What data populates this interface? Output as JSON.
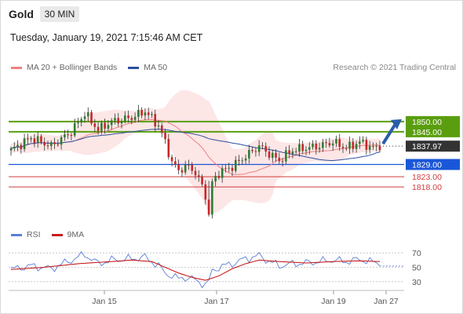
{
  "header": {
    "instrument": "Gold",
    "timeframe": "30 MIN"
  },
  "datetime": "Tuesday, January 19, 2021 7:15:46 AM CET",
  "copyright": "Research © 2021 Trading Central",
  "colors": {
    "resistance": "#5a9e0f",
    "support": "#1a56d8",
    "minor": "#d13b3b",
    "current": "#333333",
    "bollinger_fill": "#fde2e2",
    "ma20": "#f08080",
    "ma50": "#2c4fa0",
    "arrow": "#2a5da8",
    "rsi": "#5b7fd6",
    "rsi_ma": "#c81e1e"
  },
  "chart_data": [
    {
      "type": "candlestick",
      "title": "Gold",
      "timeframe": "30 MIN",
      "legend": [
        {
          "name": "MA 20 + Bollinger Bands",
          "color": "#f08080"
        },
        {
          "name": "MA 50",
          "color": "#2c4fa0"
        }
      ],
      "x_ticks": [
        "Jan 15",
        "Jan 17",
        "Jan 19",
        "Jan 27"
      ],
      "ylim": [
        1800,
        1873
      ],
      "levels": [
        {
          "value": 1850.0,
          "label": "1850.00",
          "kind": "resistance"
        },
        {
          "value": 1845.0,
          "label": "1845.00",
          "kind": "resistance"
        },
        {
          "value": 1837.97,
          "label": "1837.97",
          "kind": "current"
        },
        {
          "value": 1829.0,
          "label": "1829.00",
          "kind": "support"
        },
        {
          "value": 1823.0,
          "label": "1823.00",
          "kind": "minor"
        },
        {
          "value": 1818.0,
          "label": "1818.00",
          "kind": "minor"
        }
      ],
      "price_path": [
        [
          0,
          1836
        ],
        [
          6,
          1842
        ],
        [
          12,
          1838
        ],
        [
          18,
          1845
        ],
        [
          22,
          1854
        ],
        [
          26,
          1846
        ],
        [
          30,
          1850
        ],
        [
          36,
          1852
        ],
        [
          40,
          1855
        ],
        [
          44,
          1848
        ],
        [
          46,
          1840
        ],
        [
          48,
          1830
        ],
        [
          50,
          1826
        ],
        [
          52,
          1828
        ],
        [
          54,
          1827
        ],
        [
          56,
          1822
        ],
        [
          58,
          1814
        ],
        [
          59,
          1804
        ],
        [
          60,
          1820
        ],
        [
          62,
          1825
        ],
        [
          66,
          1828
        ],
        [
          70,
          1833
        ],
        [
          74,
          1838
        ],
        [
          78,
          1833
        ],
        [
          80,
          1831
        ],
        [
          84,
          1836
        ],
        [
          88,
          1837
        ],
        [
          92,
          1838
        ],
        [
          96,
          1840
        ],
        [
          100,
          1837
        ],
        [
          104,
          1840
        ],
        [
          108,
          1837
        ],
        [
          110,
          1838
        ]
      ],
      "projection": {
        "from": 1837.97,
        "to": 1850.0
      }
    },
    {
      "type": "line",
      "title": "RSI",
      "legend": [
        {
          "name": "RSI",
          "color": "#5b7fd6"
        },
        {
          "name": "9MA",
          "color": "#c81e1e"
        }
      ],
      "ylim": [
        20,
        80
      ],
      "y_ticks": [
        70,
        50,
        30
      ],
      "series": [
        {
          "name": "RSI",
          "values": [
            [
              0,
              47
            ],
            [
              6,
              52
            ],
            [
              12,
              48
            ],
            [
              18,
              60
            ],
            [
              22,
              68
            ],
            [
              26,
              55
            ],
            [
              30,
              60
            ],
            [
              36,
              62
            ],
            [
              40,
              64
            ],
            [
              44,
              52
            ],
            [
              46,
              42
            ],
            [
              48,
              38
            ],
            [
              50,
              34
            ],
            [
              52,
              36
            ],
            [
              54,
              34
            ],
            [
              56,
              30
            ],
            [
              58,
              26
            ],
            [
              59,
              30
            ],
            [
              60,
              45
            ],
            [
              62,
              50
            ],
            [
              66,
              55
            ],
            [
              70,
              62
            ],
            [
              74,
              66
            ],
            [
              78,
              56
            ],
            [
              80,
              52
            ],
            [
              84,
              55
            ],
            [
              88,
              56
            ],
            [
              92,
              58
            ],
            [
              96,
              60
            ],
            [
              100,
              58
            ],
            [
              104,
              61
            ],
            [
              108,
              57
            ],
            [
              110,
              56
            ]
          ]
        },
        {
          "name": "9MA",
          "values": [
            [
              0,
              47
            ],
            [
              10,
              50
            ],
            [
              20,
              55
            ],
            [
              30,
              58
            ],
            [
              36,
              60
            ],
            [
              42,
              58
            ],
            [
              46,
              50
            ],
            [
              50,
              42
            ],
            [
              54,
              36
            ],
            [
              58,
              32
            ],
            [
              62,
              38
            ],
            [
              66,
              48
            ],
            [
              70,
              55
            ],
            [
              74,
              60
            ],
            [
              80,
              58
            ],
            [
              88,
              56
            ],
            [
              96,
              58
            ],
            [
              104,
              59
            ],
            [
              110,
              58
            ]
          ]
        }
      ]
    }
  ]
}
